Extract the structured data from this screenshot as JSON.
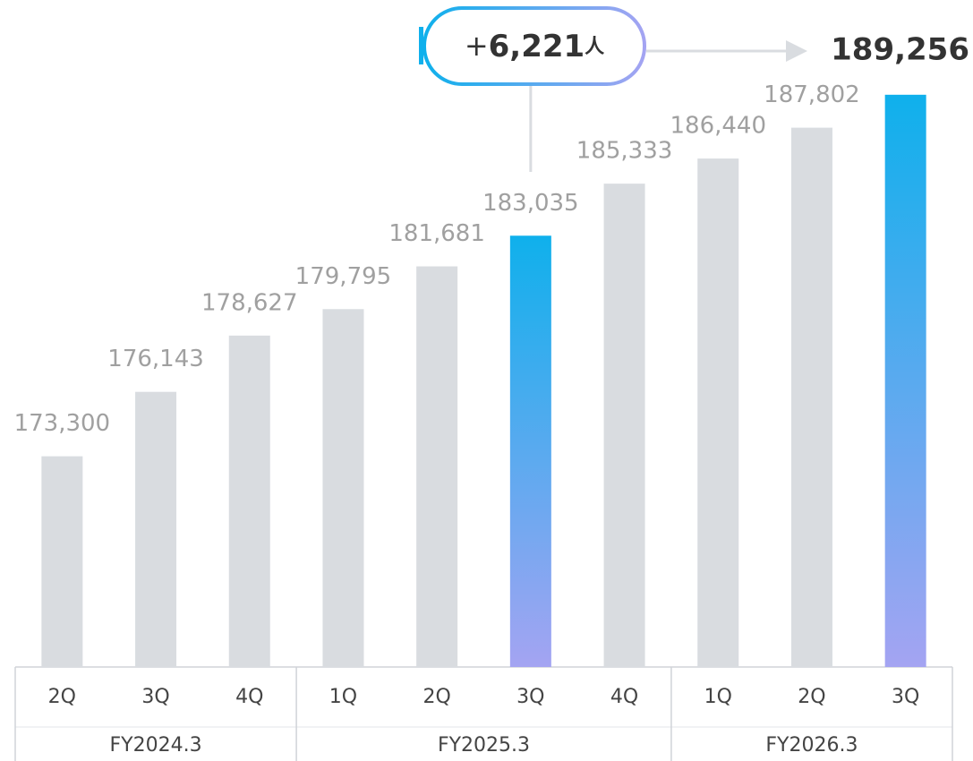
{
  "chart_data": {
    "type": "bar",
    "categories": [
      "2Q",
      "3Q",
      "4Q",
      "1Q",
      "2Q",
      "3Q",
      "4Q",
      "1Q",
      "2Q",
      "3Q"
    ],
    "category_groups": [
      "FY2024.3",
      "FY2024.3",
      "FY2024.3",
      "FY2025.3",
      "FY2025.3",
      "FY2025.3",
      "FY2025.3",
      "FY2026.3",
      "FY2026.3",
      "FY2026.3"
    ],
    "values": [
      173300,
      176143,
      178627,
      179795,
      181681,
      183035,
      185333,
      186440,
      187802,
      189256
    ],
    "value_labels": [
      "173,300",
      "176,143",
      "178,627",
      "179,795",
      "181,681",
      "183,035",
      "185,333",
      "186,440",
      "187,802",
      "189,256"
    ],
    "color": "#d9dce0",
    "highlight": {
      "indices": [
        5,
        9
      ],
      "colors": [
        "#0fb0ec",
        "#a4a4f2"
      ]
    },
    "annotation": {
      "sign": "+",
      "amount": "6,221",
      "unit": "人"
    },
    "ylim": [
      164000,
      190000
    ],
    "grid": false
  }
}
